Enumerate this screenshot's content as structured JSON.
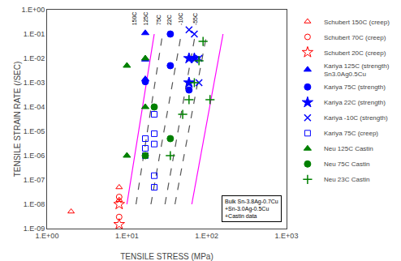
{
  "chart_data": {
    "type": "scatter",
    "xlabel": "TENSILE STRESS (MPa)",
    "ylabel": "TENSILE STRAIN RATE (/SEC)",
    "log": true,
    "grid": false,
    "legend": "right",
    "xlim": [
      1.0,
      1000.0
    ],
    "ylim": [
      1e-09,
      1.0
    ],
    "xticks": [
      {
        "value": 1,
        "label": "1.E+00"
      },
      {
        "value": 10,
        "label": "1.E+01"
      },
      {
        "value": 100,
        "label": "1.E+02"
      },
      {
        "value": 1000,
        "label": "1.E+03"
      }
    ],
    "yticks": [
      {
        "value": 1e-09,
        "label": "1.E-09"
      },
      {
        "value": 1e-08,
        "label": "1.E-08"
      },
      {
        "value": 1e-07,
        "label": "1.E-07"
      },
      {
        "value": 1e-06,
        "label": "1.E-06"
      },
      {
        "value": 1e-05,
        "label": "1.E-05"
      },
      {
        "value": 0.0001,
        "label": "1.E-04"
      },
      {
        "value": 0.001,
        "label": "1.E-03"
      },
      {
        "value": 0.01,
        "label": "1.E-02"
      },
      {
        "value": 0.1,
        "label": "1.E-01"
      },
      {
        "value": 1,
        "label": "1.E+00"
      }
    ],
    "annotations": [
      "Bulk Sn-3.8Ag-0.7Cu\n+Sn-3.0Ag-0.5Cu\n+Castin data"
    ],
    "lines": [
      {
        "label": "150C",
        "color": "magenta",
        "line_style": "solid",
        "x": [
          10.0,
          22.0
        ],
        "values": [
          1e-08,
          0.1
        ],
        "label_x": 12.5,
        "label_y": 0.2
      },
      {
        "label": "125C",
        "color": "#555555",
        "line_style": "dash",
        "x": [
          13.0,
          28.0
        ],
        "values": [
          1e-08,
          0.1
        ],
        "label_x": 17.0,
        "label_y": 0.2
      },
      {
        "label": "75C",
        "color": "#555555",
        "line_style": "dash",
        "x": [
          20.0,
          48.0
        ],
        "values": [
          1e-08,
          0.1
        ],
        "label_x": 25.0,
        "label_y": 0.2
      },
      {
        "label": "22C",
        "color": "#555555",
        "line_style": "dash",
        "x": [
          30.0,
          72.0
        ],
        "values": [
          1e-08,
          0.1
        ],
        "label_x": 34.0,
        "label_y": 0.2
      },
      {
        "label": "-10C",
        "color": "#555555",
        "line_style": "dash",
        "x": [
          40.0,
          100.0
        ],
        "values": [
          1e-08,
          0.1
        ],
        "label_x": 47.0,
        "label_y": 0.2
      },
      {
        "label": "-55C",
        "color": "magenta",
        "line_style": "solid",
        "x": [
          65.0,
          160.0
        ],
        "values": [
          1e-08,
          0.1
        ],
        "label_x": 72.0,
        "label_y": 0.2
      }
    ],
    "series": [
      {
        "name": "Schubert 150C (creep)",
        "color": "red",
        "marker": "triangle-up-open",
        "x": [
          2.0,
          8.0,
          8.0
        ],
        "values": [
          5e-09,
          1.5e-08,
          5e-08
        ]
      },
      {
        "name": "Schubert 70C (creep)",
        "color": "red",
        "marker": "circle-open",
        "x": [
          8.0,
          8.0
        ],
        "values": [
          3e-09,
          2e-08
        ]
      },
      {
        "name": "Schubert 20C (creep)",
        "color": "red",
        "marker": "star-open",
        "x": [
          8.0,
          8.0
        ],
        "values": [
          1.5e-09,
          1e-08
        ]
      },
      {
        "name": "Kariya 125C (strength)\nSn3.0Ag0.5Cu",
        "color": "blue",
        "marker": "triangle-up",
        "x": [
          17.0,
          17.0,
          17.0
        ],
        "values": [
          0.0014,
          0.009,
          0.11
        ]
      },
      {
        "name": "Kariya 75C (strength)",
        "color": "blue",
        "marker": "circle",
        "x": [
          17.0,
          35.0,
          35.0,
          60.0
        ],
        "values": [
          0.0011,
          0.1,
          0.005,
          0.0005
        ]
      },
      {
        "name": "Kariya 22C (strength)",
        "color": "blue",
        "marker": "star",
        "x": [
          60.0,
          60.0,
          70.0
        ],
        "values": [
          0.01,
          0.001,
          0.01
        ]
      },
      {
        "name": "Kariya -10C (strength)",
        "color": "blue",
        "marker": "x-thin-open",
        "x": [
          60.0,
          70.0,
          80.0,
          80.0
        ],
        "values": [
          0.15,
          0.1,
          0.01,
          0.001
        ]
      },
      {
        "name": "Kariya 75C (creep)",
        "color": "blue",
        "marker": "square-open",
        "x": [
          17.0,
          17.0,
          17.0,
          22.0,
          22.0,
          22.0,
          22.0,
          22.0
        ],
        "values": [
          5e-06,
          2e-06,
          1e-06,
          5e-05,
          8e-06,
          3e-06,
          1.5e-07,
          5e-08
        ]
      },
      {
        "name": "Neu 125C Castin",
        "color": "green",
        "marker": "triangle-up",
        "x": [
          10.0,
          10.0,
          17.0,
          17.0
        ],
        "values": [
          1e-06,
          0.005,
          0.01,
          0.0001
        ]
      },
      {
        "name": "Neu 75C Castin",
        "color": "green",
        "marker": "circle",
        "x": [
          17.0,
          22.0,
          35.0
        ],
        "values": [
          1e-06,
          0.0001,
          5e-06
        ]
      },
      {
        "name": "Neu 23C Castin",
        "color": "green",
        "marker": "cross-thin-open",
        "x": [
          35.0,
          50.0,
          60.0,
          70.0,
          80.0,
          90.0,
          110.0
        ],
        "values": [
          1e-06,
          5e-05,
          0.0002,
          0.001,
          0.008,
          0.05,
          0.0002
        ]
      }
    ]
  }
}
